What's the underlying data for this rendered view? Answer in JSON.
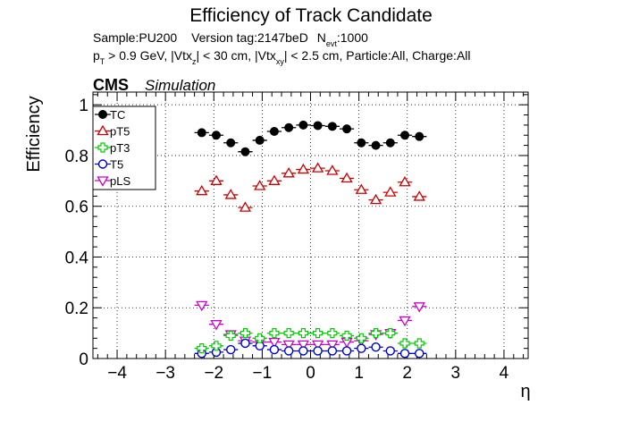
{
  "chart_data": {
    "type": "scatter",
    "title": "Efficiency of Track Candidate",
    "info_line1": {
      "sample": "Sample:PU200",
      "version": "Version tag:2147beD",
      "nevt_main": "N",
      "nevt_sub": "evt",
      "nevt_value": ":1000"
    },
    "info_line2": {
      "p": "p",
      "p_sub": "T",
      "a": " > 0.9 GeV, |Vtx",
      "a_sub": "z",
      "b": "| < 30 cm, |Vtx",
      "b_sub": "xy",
      "c": "| < 2.5 cm, Particle:All, Charge:All"
    },
    "cms_label": "CMS",
    "simulation_label": "Simulation",
    "xlabel": "η",
    "ylabel": "Efficiency",
    "xlim": [
      -4.5,
      4.5
    ],
    "ylim": [
      0,
      1.05
    ],
    "xticks": [
      "−4",
      "−3",
      "−2",
      "−1",
      "0",
      "1",
      "2",
      "3",
      "4"
    ],
    "yticks": [
      "0",
      "0.2",
      "0.4",
      "0.6",
      "0.8",
      "1"
    ],
    "grid": true,
    "legend_position": "top-left",
    "bin_half_width": 0.15,
    "x": [
      -2.25,
      -1.95,
      -1.65,
      -1.35,
      -1.05,
      -0.75,
      -0.45,
      -0.15,
      0.15,
      0.45,
      0.75,
      1.05,
      1.35,
      1.65,
      1.95,
      2.25
    ],
    "series": [
      {
        "name": "TC",
        "color": "#000000",
        "marker": "filled-circle",
        "values": [
          0.89,
          0.88,
          0.85,
          0.815,
          0.86,
          0.895,
          0.91,
          0.92,
          0.918,
          0.915,
          0.905,
          0.85,
          0.84,
          0.85,
          0.88,
          0.875
        ]
      },
      {
        "name": "pT5",
        "color": "#cc0000",
        "marker": "open-triangle",
        "values": [
          0.66,
          0.7,
          0.645,
          0.595,
          0.68,
          0.7,
          0.73,
          0.745,
          0.75,
          0.74,
          0.71,
          0.665,
          0.625,
          0.655,
          0.695,
          0.638
        ]
      },
      {
        "name": "pT3",
        "color": "#00cc00",
        "marker": "open-cross",
        "values": [
          0.04,
          0.05,
          0.09,
          0.1,
          0.08,
          0.1,
          0.1,
          0.1,
          0.1,
          0.1,
          0.09,
          0.08,
          0.1,
          0.1,
          0.06,
          0.06
        ]
      },
      {
        "name": "T5",
        "color": "#0000cc",
        "marker": "open-circle",
        "values": [
          0.02,
          0.025,
          0.035,
          0.06,
          0.05,
          0.035,
          0.03,
          0.03,
          0.03,
          0.03,
          0.03,
          0.04,
          0.045,
          0.03,
          0.02,
          0.02
        ]
      },
      {
        "name": "pLS",
        "color": "#cc00cc",
        "marker": "open-triangle-down",
        "values": [
          0.21,
          0.135,
          0.095,
          0.07,
          0.065,
          0.065,
          0.055,
          0.055,
          0.055,
          0.055,
          0.065,
          0.07,
          0.095,
          0.1,
          0.15,
          0.205
        ]
      }
    ]
  }
}
